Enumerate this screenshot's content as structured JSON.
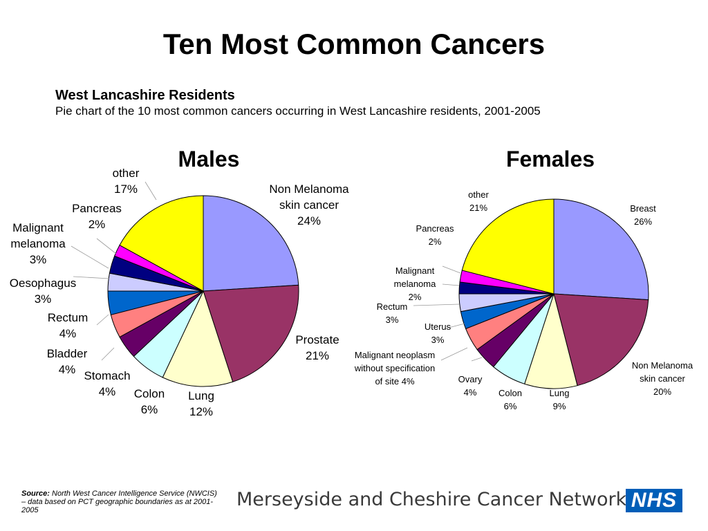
{
  "title": "Ten Most Common Cancers",
  "subtitle": "West Lancashire Residents",
  "description": "Pie chart of the 10 most common cancers occurring in West Lancashire  residents, 2001-2005",
  "source": {
    "label": "Source:",
    "text": " North West Cancer Intelligence Service (NWCIS) – data based on PCT geographic boundaries as at 2001-2005"
  },
  "footer": {
    "network": "Merseyside and Cheshire Cancer Network",
    "logo": "NHS"
  },
  "chart_data": [
    {
      "type": "pie",
      "title": "Males",
      "start": "12 o'clock, clockwise",
      "slices": [
        {
          "name": "Non Melanoma skin cancer",
          "value": 24,
          "pct": "24%",
          "color": "#9999ff"
        },
        {
          "name": "Prostate",
          "value": 21,
          "pct": "21%",
          "color": "#993366"
        },
        {
          "name": "Lung",
          "value": 12,
          "pct": "12%",
          "color": "#ffffcc"
        },
        {
          "name": "Colon",
          "value": 6,
          "pct": "6%",
          "color": "#ccffff"
        },
        {
          "name": "Stomach",
          "value": 4,
          "pct": "4%",
          "color": "#660066"
        },
        {
          "name": "Bladder",
          "value": 4,
          "pct": "4%",
          "color": "#ff8080"
        },
        {
          "name": "Rectum",
          "value": 4,
          "pct": "4%",
          "color": "#0066cc"
        },
        {
          "name": "Oesophagus",
          "value": 3,
          "pct": "3%",
          "color": "#ccccff"
        },
        {
          "name": "Malignant melanoma",
          "value": 3,
          "pct": "3%",
          "color": "#000080"
        },
        {
          "name": "Pancreas",
          "value": 2,
          "pct": "2%",
          "color": "#ff00ff"
        },
        {
          "name": "other",
          "value": 17,
          "pct": "17%",
          "color": "#ffff00"
        }
      ]
    },
    {
      "type": "pie",
      "title": "Females",
      "start": "12 o'clock, clockwise",
      "slices": [
        {
          "name": "Breast",
          "value": 26,
          "pct": "26%",
          "color": "#9999ff"
        },
        {
          "name": "Non Melanoma skin cancer",
          "value": 20,
          "pct": "20%",
          "color": "#993366"
        },
        {
          "name": "Lung",
          "value": 9,
          "pct": "9%",
          "color": "#ffffcc"
        },
        {
          "name": "Colon",
          "value": 6,
          "pct": "6%",
          "color": "#ccffff"
        },
        {
          "name": "Ovary",
          "value": 4,
          "pct": "4%",
          "color": "#660066"
        },
        {
          "name": "Malignant neoplasm without specification of site",
          "value": 4,
          "pct": "4%",
          "color": "#ff8080"
        },
        {
          "name": "Uterus",
          "value": 3,
          "pct": "3%",
          "color": "#0066cc"
        },
        {
          "name": "Rectum",
          "value": 3,
          "pct": "3%",
          "color": "#ccccff"
        },
        {
          "name": "Malignant melanoma",
          "value": 2,
          "pct": "2%",
          "color": "#000080"
        },
        {
          "name": "Pancreas",
          "value": 2,
          "pct": "2%",
          "color": "#ff00ff"
        },
        {
          "name": "other",
          "value": 21,
          "pct": "21%",
          "color": "#ffff00"
        }
      ]
    }
  ]
}
